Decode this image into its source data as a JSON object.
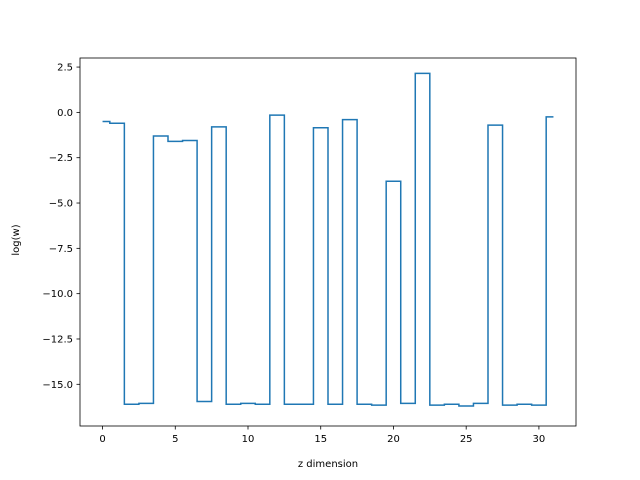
{
  "chart_data": {
    "type": "line",
    "drawstyle": "steps-mid",
    "title": "",
    "xlabel": "z dimension",
    "ylabel": "log(w)",
    "xlim": [
      -1.55,
      32.55
    ],
    "ylim": [
      -17.3,
      3.0
    ],
    "xticks": [
      0,
      5,
      10,
      15,
      20,
      25,
      30
    ],
    "xtick_labels": [
      "0",
      "5",
      "10",
      "15",
      "20",
      "25",
      "30"
    ],
    "yticks": [
      2.5,
      0.0,
      -2.5,
      -5.0,
      -7.5,
      -10.0,
      -12.5,
      -15.0
    ],
    "ytick_labels": [
      "2.5",
      "0.0",
      "−2.5",
      "−5.0",
      "−7.5",
      "−10.0",
      "−12.5",
      "−15.0"
    ],
    "grid": false,
    "series": [
      {
        "color": "#1f77b4",
        "x": [
          0,
          1,
          2,
          3,
          4,
          5,
          6,
          7,
          8,
          9,
          10,
          11,
          12,
          13,
          14,
          15,
          16,
          17,
          18,
          19,
          20,
          21,
          22,
          23,
          24,
          25,
          26,
          27,
          28,
          29,
          30,
          31
        ],
        "values": [
          -0.5,
          -0.6,
          -16.1,
          -16.05,
          -1.3,
          -1.6,
          -1.55,
          -15.95,
          -0.8,
          -16.1,
          -16.05,
          -16.1,
          -0.15,
          -16.1,
          -16.1,
          -0.85,
          -16.1,
          -0.4,
          -16.1,
          -16.15,
          -3.8,
          -16.05,
          2.15,
          -16.15,
          -16.1,
          -16.2,
          -16.05,
          -0.7,
          -16.15,
          -16.1,
          -16.15,
          -0.25
        ]
      }
    ]
  }
}
